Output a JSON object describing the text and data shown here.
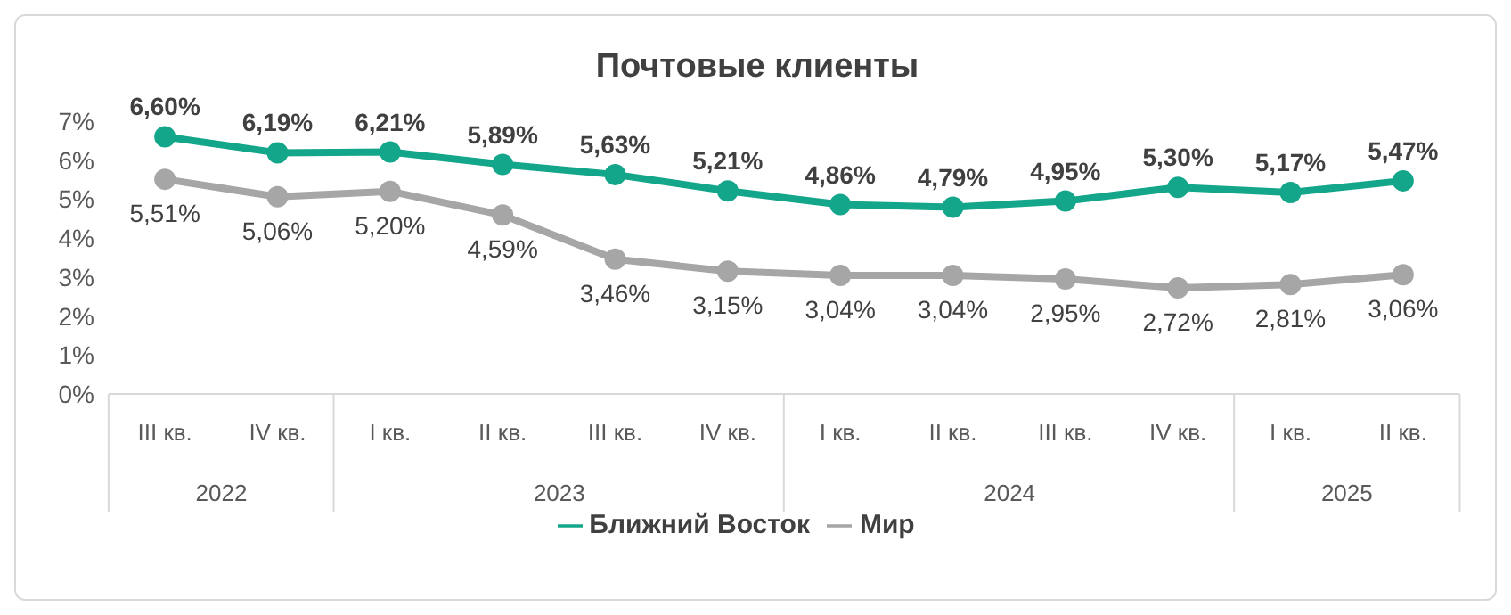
{
  "chart_data": {
    "type": "line",
    "title": "Почтовые клиенты",
    "categories": [
      "III кв.",
      "IV кв.",
      "I кв.",
      "II кв.",
      "III кв.",
      "IV кв.",
      "I кв.",
      "II кв.",
      "III кв.",
      "IV кв.",
      "I кв.",
      "II кв."
    ],
    "annotations": [
      "2022",
      "2023",
      "2024",
      "2025"
    ],
    "series": [
      {
        "name": "Ближний Восток",
        "color": "#13a68a",
        "values": [
          6.6,
          6.19,
          6.21,
          5.89,
          5.63,
          5.21,
          4.86,
          4.79,
          4.95,
          5.3,
          5.17,
          5.47
        ],
        "value_labels": [
          "6,60%",
          "6,19%",
          "6,21%",
          "5,89%",
          "5,63%",
          "5,21%",
          "4,86%",
          "4,79%",
          "4,95%",
          "5,30%",
          "5,17%",
          "5,47%"
        ]
      },
      {
        "name": "Мир",
        "color": "#a6a6a6",
        "values": [
          5.51,
          5.06,
          5.2,
          4.59,
          3.46,
          3.15,
          3.04,
          3.04,
          2.95,
          2.72,
          2.81,
          3.06
        ],
        "value_labels": [
          "5,51%",
          "5,06%",
          "5,20%",
          "4,59%",
          "3,46%",
          "3,15%",
          "3,04%",
          "3,04%",
          "2,95%",
          "2,72%",
          "2,81%",
          "3,06%"
        ]
      }
    ],
    "ylim": [
      0,
      7
    ],
    "yticks": [
      {
        "value": 0,
        "label": "0%"
      },
      {
        "value": 1,
        "label": "1%"
      },
      {
        "value": 2,
        "label": "2%"
      },
      {
        "value": 3,
        "label": "3%"
      },
      {
        "value": 4,
        "label": "4%"
      },
      {
        "value": 5,
        "label": "5%"
      },
      {
        "value": 6,
        "label": "6%"
      },
      {
        "value": 7,
        "label": "7%"
      }
    ],
    "grid": false,
    "legend": "bottom",
    "marker": "circle",
    "line_style": "solid"
  }
}
